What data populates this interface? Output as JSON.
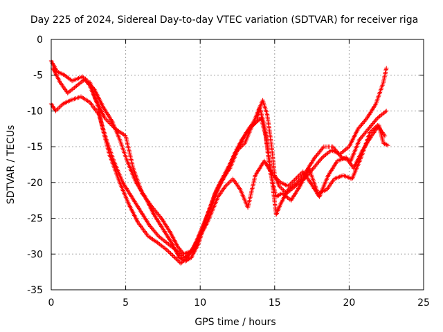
{
  "chart_data": {
    "type": "scatter",
    "title": "Day 225 of 2024, Sidereal Day-to-day VTEC variation (SDTVAR) for receiver riga",
    "xlabel": "GPS time / hours",
    "ylabel": "SDTVAR / TECUs",
    "xlim": [
      0,
      25
    ],
    "ylim": [
      -35,
      0
    ],
    "x_ticks": [
      0,
      5,
      10,
      15,
      20,
      25
    ],
    "y_ticks": [
      0,
      -5,
      -10,
      -15,
      -20,
      -25,
      -30,
      -35
    ],
    "grid": true,
    "marker": "+",
    "colors": {
      "series": "#ff0000",
      "grid": "#a0a0a0",
      "axis": "#000000"
    },
    "series": [
      {
        "values": [
          [
            0.0,
            -3.0
          ],
          [
            0.4,
            -4.5
          ],
          [
            0.9,
            -5.0
          ],
          [
            1.4,
            -5.8
          ],
          [
            2.1,
            -5.2
          ],
          [
            2.6,
            -6.5
          ],
          [
            3.1,
            -9.0
          ],
          [
            3.4,
            -12.0
          ],
          [
            3.9,
            -16.0
          ],
          [
            4.6,
            -20.0
          ],
          [
            5.2,
            -23.0
          ],
          [
            5.8,
            -25.5
          ],
          [
            6.5,
            -27.5
          ],
          [
            7.2,
            -28.5
          ],
          [
            7.8,
            -29.5
          ],
          [
            8.3,
            -30.5
          ],
          [
            8.7,
            -31.3
          ],
          [
            9.1,
            -30.5
          ],
          [
            9.6,
            -29.0
          ],
          [
            10.1,
            -26.5
          ],
          [
            10.6,
            -24.0
          ],
          [
            11.1,
            -21.0
          ],
          [
            11.6,
            -19.0
          ],
          [
            12.1,
            -17.0
          ],
          [
            12.6,
            -15.0
          ],
          [
            13.1,
            -13.0
          ],
          [
            13.6,
            -11.5
          ],
          [
            13.9,
            -10.0
          ],
          [
            14.2,
            -8.5
          ],
          [
            14.5,
            -10.5
          ],
          [
            14.8,
            -15.0
          ],
          [
            15.0,
            -19.0
          ],
          [
            15.3,
            -20.5
          ],
          [
            15.8,
            -21.5
          ],
          [
            16.4,
            -20.5
          ],
          [
            17.0,
            -19.5
          ],
          [
            17.6,
            -18.0
          ],
          [
            18.2,
            -16.5
          ],
          [
            18.8,
            -15.5
          ],
          [
            19.4,
            -16.0
          ],
          [
            20.0,
            -15.0
          ],
          [
            20.6,
            -12.5
          ],
          [
            21.2,
            -11.0
          ],
          [
            21.8,
            -9.0
          ],
          [
            22.3,
            -6.0
          ],
          [
            22.5,
            -4.0
          ]
        ]
      },
      {
        "values": [
          [
            0.0,
            -9.0
          ],
          [
            0.3,
            -10.0
          ],
          [
            0.8,
            -9.0
          ],
          [
            1.3,
            -8.5
          ],
          [
            2.0,
            -8.0
          ],
          [
            2.6,
            -8.8
          ],
          [
            3.2,
            -10.5
          ],
          [
            3.7,
            -14.0
          ],
          [
            4.2,
            -17.0
          ],
          [
            4.8,
            -20.0
          ],
          [
            5.4,
            -22.0
          ],
          [
            6.0,
            -24.0
          ],
          [
            6.6,
            -26.0
          ],
          [
            7.2,
            -27.5
          ],
          [
            7.8,
            -28.5
          ],
          [
            8.4,
            -29.5
          ],
          [
            8.9,
            -30.5
          ],
          [
            9.3,
            -30.0
          ],
          [
            9.8,
            -28.0
          ],
          [
            10.3,
            -25.5
          ],
          [
            10.8,
            -23.0
          ],
          [
            11.3,
            -20.5
          ],
          [
            11.8,
            -18.5
          ],
          [
            12.3,
            -16.0
          ],
          [
            12.8,
            -14.0
          ],
          [
            13.3,
            -12.5
          ],
          [
            13.8,
            -11.5
          ],
          [
            14.0,
            -9.5
          ],
          [
            14.3,
            -12.0
          ],
          [
            14.6,
            -16.0
          ],
          [
            14.9,
            -21.0
          ],
          [
            15.1,
            -24.5
          ],
          [
            15.4,
            -23.0
          ],
          [
            15.9,
            -21.0
          ],
          [
            16.5,
            -20.0
          ],
          [
            17.1,
            -18.5
          ],
          [
            17.7,
            -16.5
          ],
          [
            18.3,
            -15.0
          ],
          [
            18.9,
            -15.0
          ],
          [
            19.5,
            -16.5
          ],
          [
            20.1,
            -17.0
          ],
          [
            20.7,
            -14.0
          ],
          [
            21.3,
            -12.5
          ],
          [
            21.9,
            -11.0
          ],
          [
            22.5,
            -10.0
          ]
        ]
      },
      {
        "values": [
          [
            0.1,
            -4.0
          ],
          [
            0.6,
            -6.0
          ],
          [
            1.1,
            -7.5
          ],
          [
            1.7,
            -6.5
          ],
          [
            2.3,
            -5.5
          ],
          [
            2.9,
            -7.0
          ],
          [
            3.5,
            -9.5
          ],
          [
            4.1,
            -11.5
          ],
          [
            4.6,
            -14.0
          ],
          [
            5.1,
            -17.0
          ],
          [
            5.7,
            -20.0
          ],
          [
            6.3,
            -22.0
          ],
          [
            6.9,
            -24.5
          ],
          [
            7.5,
            -26.5
          ],
          [
            8.1,
            -28.5
          ],
          [
            8.6,
            -30.5
          ],
          [
            9.0,
            -31.0
          ],
          [
            9.4,
            -30.5
          ],
          [
            9.9,
            -28.5
          ],
          [
            10.4,
            -25.0
          ],
          [
            11.0,
            -21.5
          ],
          [
            11.5,
            -19.5
          ],
          [
            12.0,
            -18.0
          ],
          [
            12.5,
            -15.5
          ],
          [
            13.0,
            -14.5
          ],
          [
            13.5,
            -12.0
          ],
          [
            14.1,
            -11.0
          ],
          [
            14.4,
            -13.5
          ],
          [
            14.7,
            -18.5
          ],
          [
            15.1,
            -22.0
          ],
          [
            15.5,
            -21.5
          ],
          [
            16.1,
            -22.5
          ],
          [
            16.7,
            -20.5
          ],
          [
            17.3,
            -18.0
          ],
          [
            17.9,
            -21.5
          ],
          [
            18.5,
            -21.0
          ],
          [
            19.0,
            -19.5
          ],
          [
            19.6,
            -19.0
          ],
          [
            20.2,
            -19.5
          ],
          [
            20.8,
            -16.5
          ],
          [
            21.4,
            -13.0
          ],
          [
            21.9,
            -12.0
          ],
          [
            22.4,
            -13.5
          ]
        ]
      },
      {
        "values": [
          [
            2.6,
            -6.0
          ],
          [
            3.0,
            -8.5
          ],
          [
            3.6,
            -11.0
          ],
          [
            4.3,
            -12.5
          ],
          [
            5.0,
            -13.5
          ],
          [
            5.5,
            -18.0
          ],
          [
            6.1,
            -21.5
          ],
          [
            6.8,
            -23.5
          ],
          [
            7.4,
            -25.0
          ],
          [
            8.0,
            -27.0
          ],
          [
            8.5,
            -29.0
          ],
          [
            8.9,
            -30.0
          ],
          [
            9.5,
            -29.5
          ],
          [
            10.0,
            -27.5
          ],
          [
            10.5,
            -25.5
          ],
          [
            11.2,
            -22.0
          ],
          [
            11.7,
            -20.5
          ],
          [
            12.2,
            -19.5
          ],
          [
            12.7,
            -21.0
          ],
          [
            13.2,
            -23.5
          ],
          [
            13.7,
            -19.0
          ],
          [
            14.3,
            -17.0
          ],
          [
            14.9,
            -19.0
          ],
          [
            15.4,
            -20.0
          ],
          [
            15.9,
            -20.5
          ],
          [
            16.4,
            -19.5
          ],
          [
            16.9,
            -18.5
          ],
          [
            17.4,
            -20.0
          ],
          [
            18.0,
            -22.0
          ],
          [
            18.6,
            -19.0
          ],
          [
            19.2,
            -17.0
          ],
          [
            19.8,
            -16.5
          ],
          [
            20.3,
            -18.0
          ],
          [
            20.9,
            -15.5
          ],
          [
            21.5,
            -13.5
          ],
          [
            22.0,
            -12.0
          ],
          [
            22.3,
            -14.5
          ],
          [
            22.6,
            -14.8
          ]
        ]
      }
    ]
  }
}
